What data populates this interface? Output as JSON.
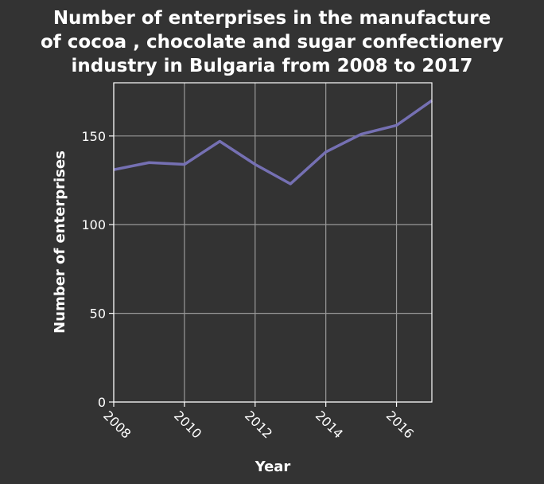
{
  "chart_data": {
    "type": "line",
    "title_lines": [
      "Number of enterprises in the manufacture",
      "of cocoa , chocolate and sugar confectionery",
      "industry in Bulgaria from 2008 to 2017"
    ],
    "xlabel": "Year",
    "ylabel": "Number of enterprises",
    "x": [
      2008,
      2009,
      2010,
      2011,
      2012,
      2013,
      2014,
      2015,
      2016,
      2017
    ],
    "series": [
      {
        "values": [
          131,
          135,
          134,
          147,
          134,
          123,
          141,
          151,
          156,
          170
        ]
      }
    ],
    "xlim": [
      2008,
      2017
    ],
    "ylim": [
      0,
      180
    ],
    "xticks": [
      2008,
      2010,
      2012,
      2014,
      2016
    ],
    "xtick_labels": [
      "2008",
      "2010",
      "2012",
      "2014",
      "2016"
    ],
    "yticks": [
      0,
      50,
      100,
      150
    ],
    "ytick_labels": [
      "0",
      "50",
      "100",
      "150"
    ],
    "grid": true,
    "colors": {
      "background": "#333333",
      "line": "#7570b3"
    }
  }
}
